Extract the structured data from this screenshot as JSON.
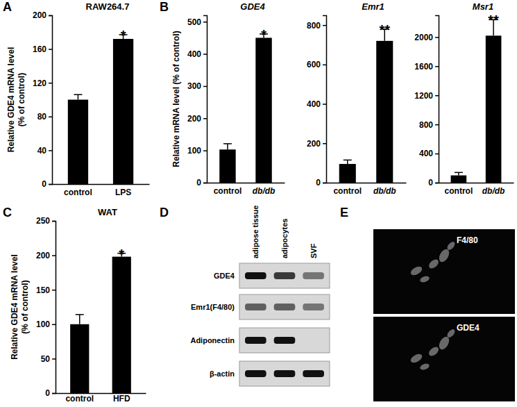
{
  "chart_data": [
    {
      "type": "bar",
      "panel": "A",
      "title": "RAW264.7",
      "y_label": [
        "Relative GDE4 mRNA level",
        "(% of control)"
      ],
      "categories": [
        "control",
        "LPS"
      ],
      "values": [
        100,
        172
      ],
      "errors": [
        6,
        5
      ],
      "annotations": [
        null,
        "*"
      ],
      "color": "#000000",
      "ylim": [
        0,
        200
      ],
      "yticks": [
        0,
        40,
        80,
        120,
        160,
        200
      ]
    },
    {
      "type": "bar",
      "panel": "B",
      "title": "GDE4",
      "y_label": [
        "Relative mRNA level (% of control)"
      ],
      "categories": [
        "control",
        "db/db"
      ],
      "values": [
        103,
        450
      ],
      "errors": [
        18,
        12
      ],
      "annotations": [
        null,
        "*"
      ],
      "color": "#000000",
      "ylim": [
        0,
        520
      ],
      "yticks": [
        0,
        100,
        200,
        300,
        400,
        500
      ]
    },
    {
      "type": "bar",
      "title": "Emr1",
      "categories": [
        "control",
        "db/db"
      ],
      "values": [
        95,
        720
      ],
      "errors": [
        20,
        60
      ],
      "annotations": [
        null,
        "**"
      ],
      "color": "#000000",
      "ylim": [
        0,
        850
      ],
      "yticks": [
        0,
        200,
        400,
        600,
        800
      ]
    },
    {
      "type": "bar",
      "title": "Msr1",
      "categories": [
        "control",
        "db/db"
      ],
      "values": [
        100,
        2020
      ],
      "errors": [
        40,
        220
      ],
      "annotations": [
        null,
        "**"
      ],
      "color": "#000000",
      "ylim": [
        0,
        2300
      ],
      "yticks": [
        0,
        400,
        800,
        1200,
        1600,
        2000
      ]
    },
    {
      "type": "bar",
      "panel": "C",
      "title": "WAT",
      "y_label": [
        "Relative GDE4 mRNA level",
        "(% of control)"
      ],
      "categories": [
        "control",
        "HFD"
      ],
      "values": [
        100,
        198
      ],
      "errors": [
        14,
        5
      ],
      "annotations": [
        null,
        "*"
      ],
      "color": "#000000",
      "ylim": [
        0,
        250
      ],
      "yticks": [
        0,
        50,
        100,
        150,
        200,
        250
      ]
    }
  ],
  "gel": {
    "panel": "D",
    "lanes": [
      "adipose tissue",
      "adipocytes",
      "SVF"
    ],
    "rows": [
      {
        "label": "GDE4",
        "intensity": [
          1.0,
          0.8,
          0.5
        ]
      },
      {
        "label": "Emr1(F4/80)",
        "intensity": [
          0.6,
          0.6,
          0.5
        ]
      },
      {
        "label": "Adiponectin",
        "intensity": [
          1.0,
          1.0,
          0
        ]
      },
      {
        "label": "β-actin",
        "intensity": [
          1.0,
          1.0,
          1.0
        ]
      }
    ]
  },
  "micrograph": {
    "panel": "E",
    "images": [
      "F4/80",
      "GDE4"
    ]
  }
}
